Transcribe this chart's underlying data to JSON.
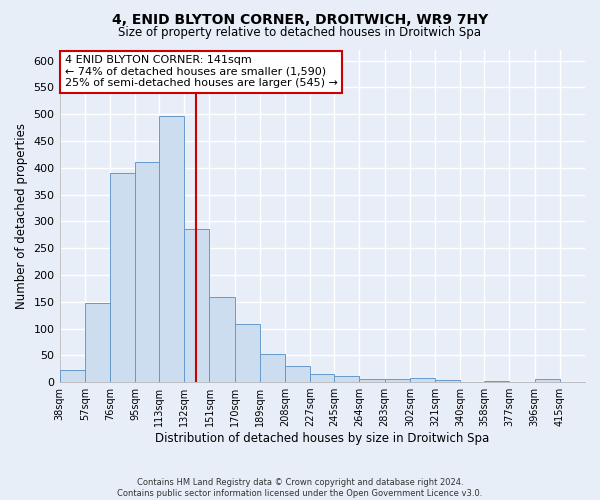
{
  "title": "4, ENID BLYTON CORNER, DROITWICH, WR9 7HY",
  "subtitle": "Size of property relative to detached houses in Droitwich Spa",
  "xlabel": "Distribution of detached houses by size in Droitwich Spa",
  "ylabel": "Number of detached properties",
  "bin_labels": [
    "38sqm",
    "57sqm",
    "76sqm",
    "95sqm",
    "113sqm",
    "132sqm",
    "151sqm",
    "170sqm",
    "189sqm",
    "208sqm",
    "227sqm",
    "245sqm",
    "264sqm",
    "283sqm",
    "302sqm",
    "321sqm",
    "340sqm",
    "358sqm",
    "377sqm",
    "396sqm",
    "415sqm"
  ],
  "bin_edges": [
    38,
    57,
    76,
    95,
    113,
    132,
    151,
    170,
    189,
    208,
    227,
    245,
    264,
    283,
    302,
    321,
    340,
    358,
    377,
    396,
    415
  ],
  "bar_heights": [
    22,
    148,
    390,
    410,
    497,
    285,
    158,
    108,
    52,
    30,
    15,
    12,
    6,
    5,
    8,
    3,
    0,
    2,
    0,
    5
  ],
  "bar_color": "#ccddf0",
  "bar_edge_color": "#6699cc",
  "reference_line_x": 141,
  "ylim": [
    0,
    620
  ],
  "yticks": [
    0,
    50,
    100,
    150,
    200,
    250,
    300,
    350,
    400,
    450,
    500,
    550,
    600
  ],
  "annotation_title": "4 ENID BLYTON CORNER: 141sqm",
  "annotation_line1": "← 74% of detached houses are smaller (1,590)",
  "annotation_line2": "25% of semi-detached houses are larger (545) →",
  "annotation_box_color": "#ffffff",
  "annotation_box_edge": "#cc0000",
  "footnote1": "Contains HM Land Registry data © Crown copyright and database right 2024.",
  "footnote2": "Contains public sector information licensed under the Open Government Licence v3.0.",
  "background_color": "#e8eef8",
  "grid_color": "#ffffff",
  "grid_linewidth": 1.0
}
